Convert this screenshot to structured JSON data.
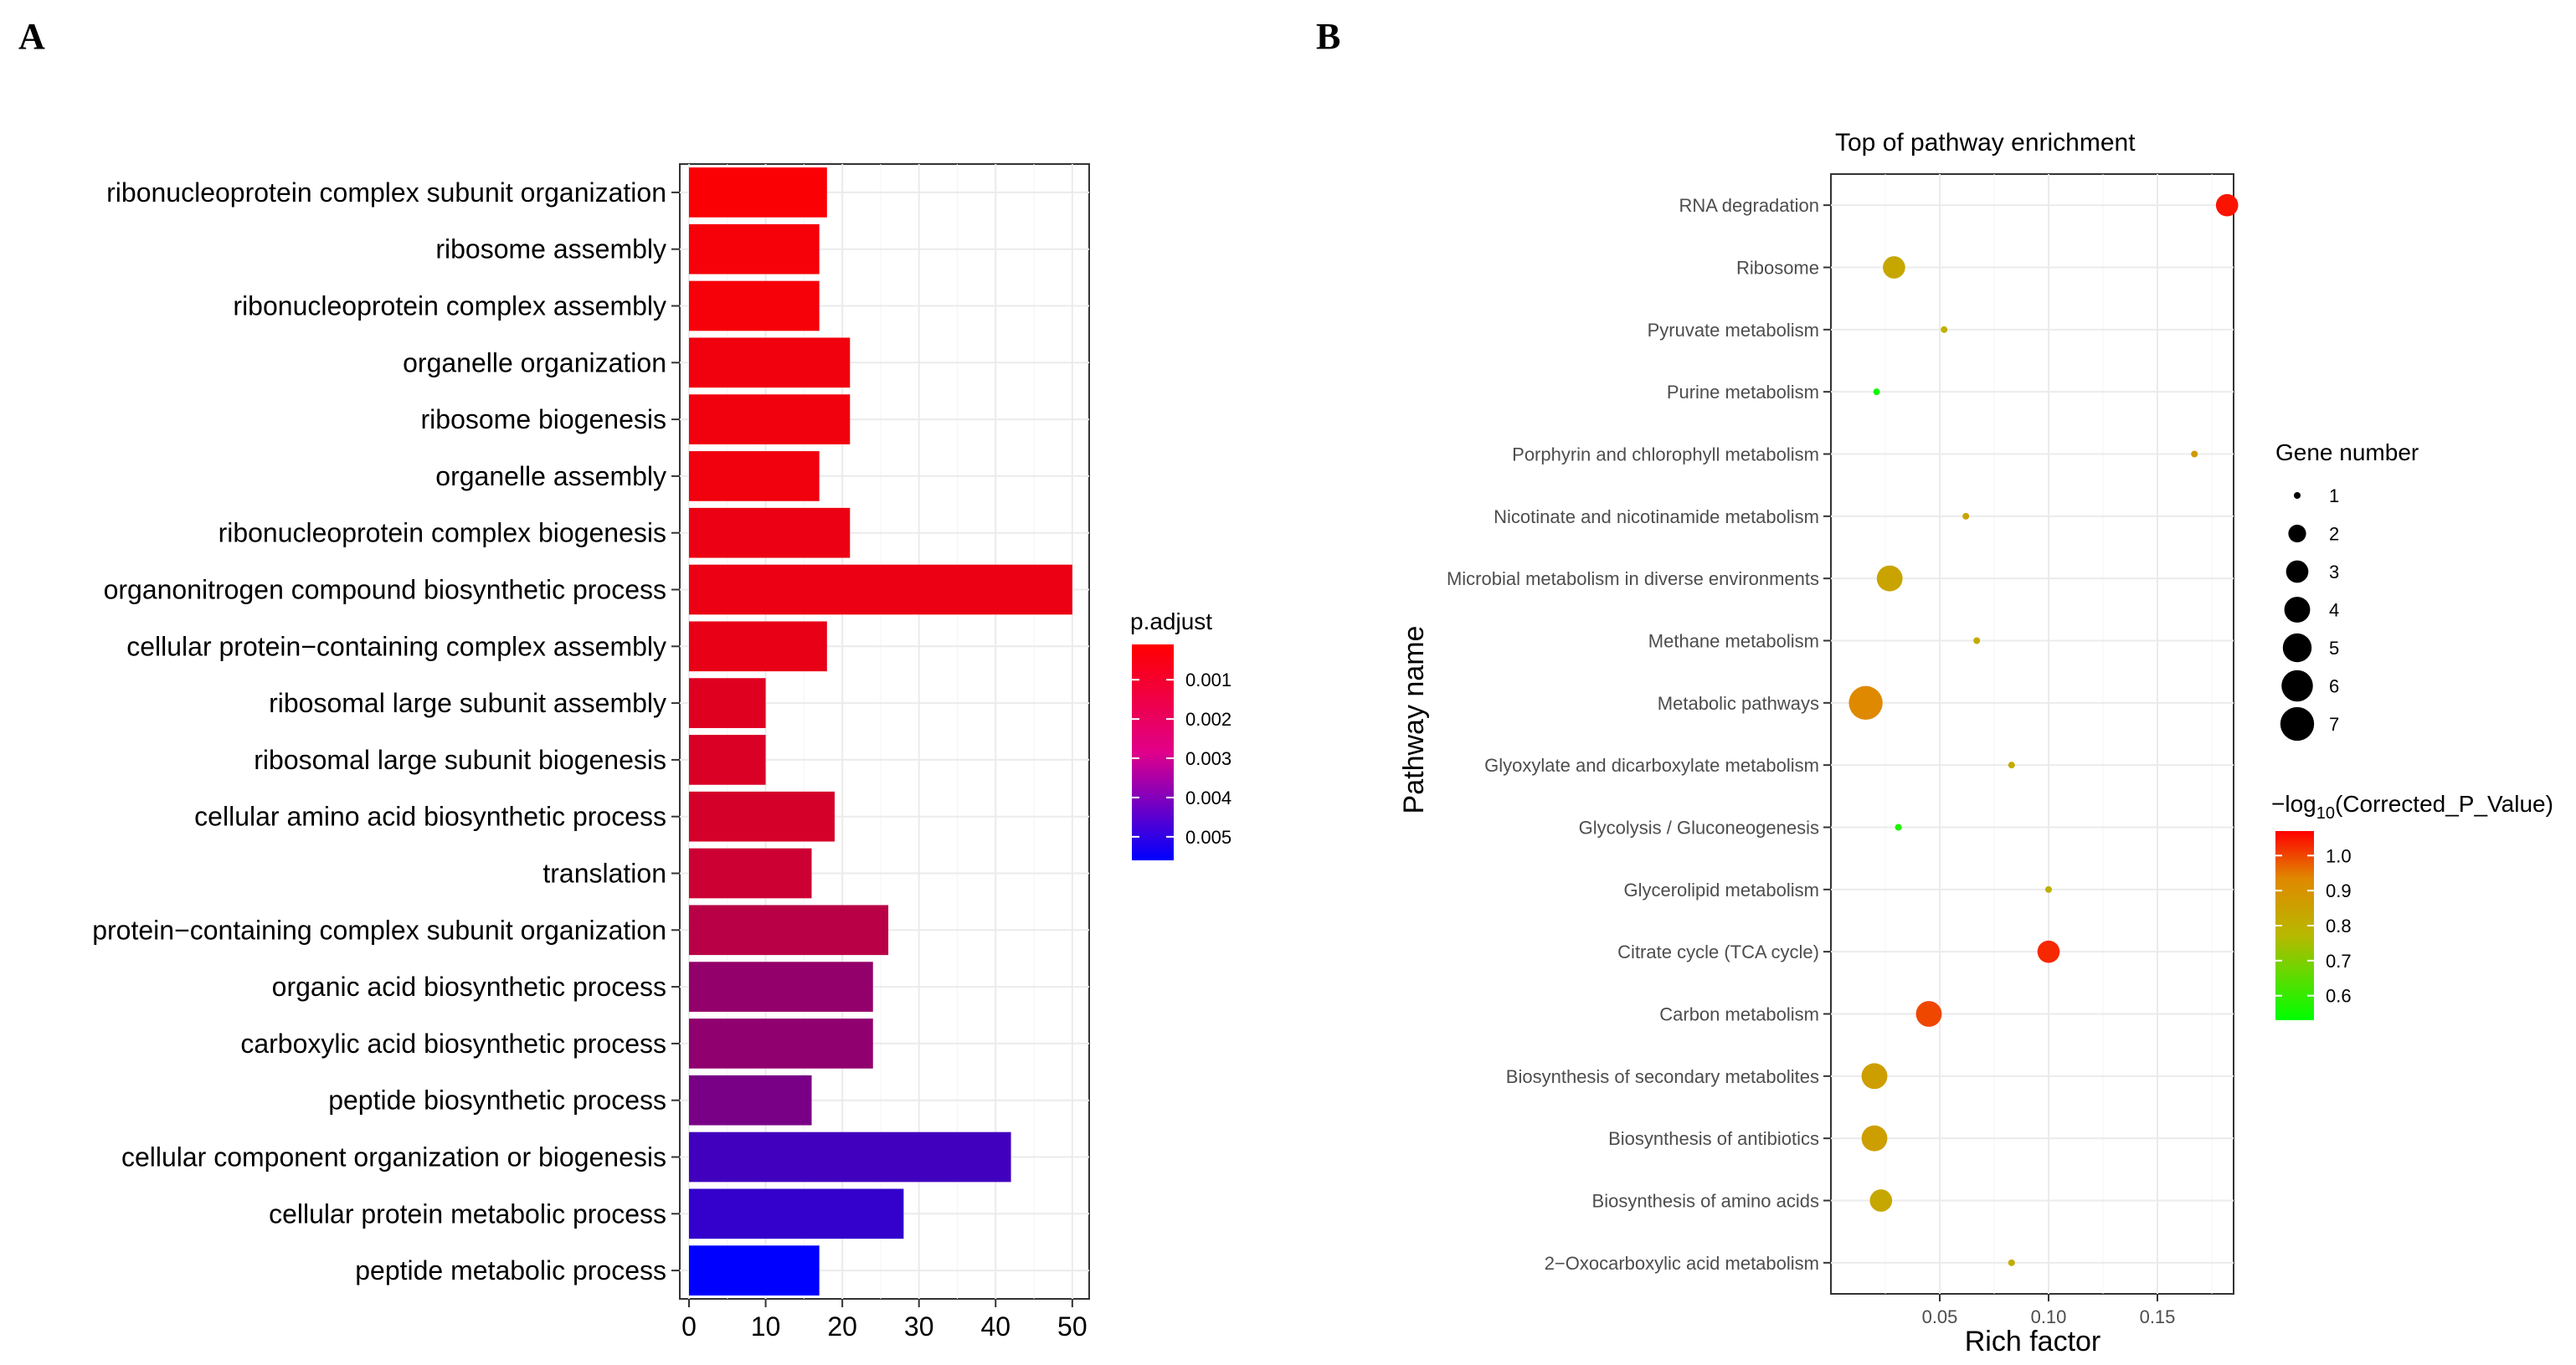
{
  "chart_data": [
    {
      "panel": "A",
      "type": "bar",
      "orientation": "horizontal",
      "categories": [
        "ribonucleoprotein complex subunit organization",
        "ribosome assembly",
        "ribonucleoprotein complex assembly",
        "organelle organization",
        "ribosome biogenesis",
        "organelle assembly",
        "ribonucleoprotein complex biogenesis",
        "organonitrogen compound biosynthetic process",
        "cellular protein−containing complex assembly",
        "ribosomal large subunit assembly",
        "ribosomal large subunit biogenesis",
        "cellular amino acid biosynthetic process",
        "translation",
        "protein−containing complex subunit organization",
        "organic acid biosynthetic process",
        "carboxylic acid biosynthetic process",
        "peptide biosynthetic process",
        "cellular component organization or biogenesis",
        "cellular protein metabolic process",
        "peptide metabolic process"
      ],
      "values": [
        18,
        17,
        17,
        21,
        21,
        17,
        21,
        50,
        18,
        10,
        10,
        19,
        16,
        26,
        24,
        24,
        16,
        42,
        28,
        17
      ],
      "p_adjust": [
        0.0002,
        0.0003,
        0.0003,
        0.0004,
        0.0004,
        0.0004,
        0.0005,
        0.0005,
        0.0006,
        0.0008,
        0.0009,
        0.001,
        0.0012,
        0.0016,
        0.0024,
        0.0025,
        0.003,
        0.0042,
        0.0045,
        0.0056
      ],
      "xlim": [
        0,
        50
      ],
      "xticks": [
        "0",
        "10",
        "20",
        "30",
        "40",
        "50"
      ],
      "xtick_values": [
        0,
        10,
        20,
        30,
        40,
        50
      ],
      "legend": {
        "title": "p.adjust",
        "labels": [
          "0.001",
          "0.002",
          "0.003",
          "0.004",
          "0.005"
        ],
        "label_values": [
          0.001,
          0.002,
          0.003,
          0.004,
          0.005
        ],
        "range": [
          0.0001,
          0.0056
        ],
        "low_color": "#ff0000",
        "high_color": "#0000ff"
      }
    },
    {
      "panel": "B",
      "type": "scatter",
      "title": "Top of pathway enrichment",
      "xlabel": "Rich factor",
      "ylabel": "Pathway name",
      "xlim": [
        0.0,
        0.185
      ],
      "xticks": [
        "0.05",
        "0.10",
        "0.15"
      ],
      "xtick_values": [
        0.05,
        0.1,
        0.15
      ],
      "categories": [
        "RNA degradation",
        "Ribosome",
        "Pyruvate metabolism",
        "Purine metabolism",
        "Porphyrin and chlorophyll metabolism",
        "Nicotinate and nicotinamide metabolism",
        "Microbial metabolism in diverse environments",
        "Methane metabolism",
        "Metabolic pathways",
        "Glyoxylate and dicarboxylate metabolism",
        "Glycolysis / Gluconeogenesis",
        "Glycerolipid metabolism",
        "Citrate cycle (TCA cycle)",
        "Carbon metabolism",
        "Biosynthesis of secondary metabolites",
        "Biosynthesis of antibiotics",
        "Biosynthesis of amino acids",
        "2−Oxocarboxylic acid metabolism"
      ],
      "rich_factor": [
        0.182,
        0.029,
        0.052,
        0.021,
        0.167,
        0.062,
        0.027,
        0.067,
        0.016,
        0.083,
        0.031,
        0.1,
        0.1,
        0.045,
        0.02,
        0.02,
        0.023,
        0.083
      ],
      "gene_number": [
        3,
        3,
        1,
        1,
        1,
        1,
        4,
        1,
        7,
        1,
        1,
        1,
        3,
        4,
        4,
        4,
        3,
        1
      ],
      "neg_log10_p": [
        1.05,
        0.83,
        0.8,
        0.55,
        0.87,
        0.84,
        0.84,
        0.82,
        0.93,
        0.82,
        0.57,
        0.8,
        1.03,
        1.0,
        0.86,
        0.86,
        0.83,
        0.81
      ],
      "size_legend": {
        "title": "Gene number",
        "labels": [
          "1",
          "2",
          "3",
          "4",
          "5",
          "6",
          "7"
        ],
        "values": [
          1,
          2,
          3,
          4,
          5,
          6,
          7
        ]
      },
      "color_legend": {
        "title_prefix": "−log",
        "title_sub": "10",
        "title_suffix": "(Corrected_P_Value)",
        "labels": [
          "1.0",
          "0.9",
          "0.8",
          "0.7",
          "0.6"
        ],
        "values": [
          1.0,
          0.9,
          0.8,
          0.7,
          0.6
        ],
        "range": [
          0.53,
          1.07
        ],
        "low_color": "#00ff00",
        "high_color": "#ff0000"
      }
    }
  ],
  "panel_labels": {
    "a": "A",
    "b": "B"
  }
}
